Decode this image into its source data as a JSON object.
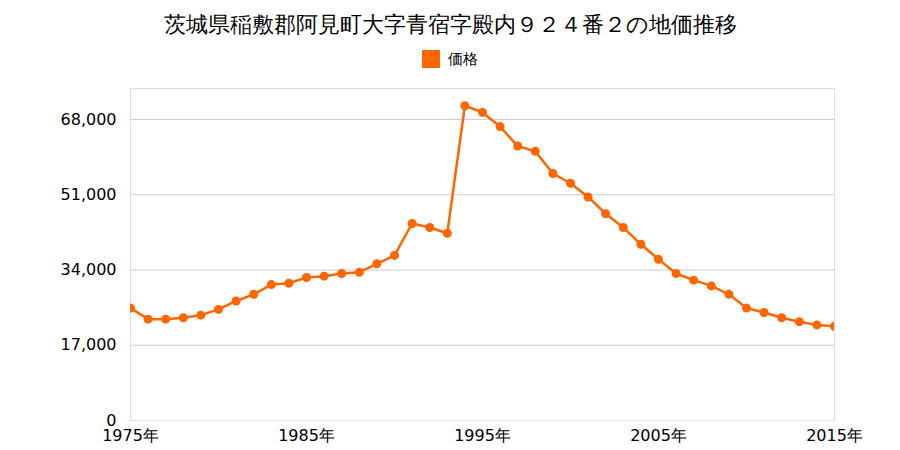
{
  "chart_data": {
    "type": "line",
    "title": "茨城県稲敷郡阿見町大字青宿字殿内９２４番２の地価推移",
    "x": [
      1975,
      1976,
      1977,
      1978,
      1979,
      1980,
      1981,
      1982,
      1983,
      1984,
      1985,
      1986,
      1987,
      1988,
      1989,
      1990,
      1991,
      1992,
      1993,
      1994,
      1995,
      1996,
      1997,
      1998,
      1999,
      2000,
      2001,
      2002,
      2003,
      2004,
      2005,
      2006,
      2007,
      2008,
      2009,
      2010,
      2011,
      2012,
      2013,
      2014,
      2015
    ],
    "series": [
      {
        "name": "価格",
        "color": "#ff6600",
        "marker": "circle",
        "values": [
          25400,
          22900,
          22900,
          23200,
          23800,
          25100,
          27000,
          28500,
          30700,
          31000,
          32300,
          32600,
          33200,
          33500,
          35400,
          37300,
          44500,
          43600,
          42300,
          71100,
          69600,
          66400,
          62000,
          60800,
          55800,
          53600,
          50500,
          46700,
          43600,
          39800,
          36400,
          33200,
          31700,
          30400,
          28500,
          25400,
          24400,
          23200,
          22300,
          21600,
          21300
        ]
      }
    ],
    "xlim": [
      1975,
      2015
    ],
    "xticks": [
      {
        "value": 1975,
        "label": "1975年"
      },
      {
        "value": 1985,
        "label": "1985年"
      },
      {
        "value": 1995,
        "label": "1995年"
      },
      {
        "value": 2005,
        "label": "2005年"
      },
      {
        "value": 2015,
        "label": "2015年"
      }
    ],
    "ylim": [
      0,
      75000
    ],
    "yticks": [
      0,
      {
        "value": 17000,
        "label": "17,000"
      },
      {
        "value": 34000,
        "label": "34,000"
      },
      {
        "value": 51000,
        "label": "51,000"
      },
      {
        "value": 68000,
        "label": "68,000"
      }
    ],
    "grid": true,
    "legend": "top"
  }
}
